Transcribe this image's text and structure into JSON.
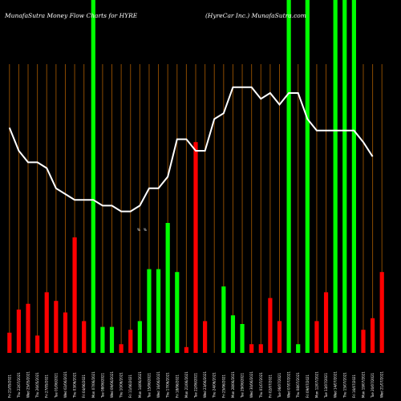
{
  "chart_data": {
    "type": "bar",
    "title_left": "MunafaSutra  Money Flow  Charts for HYRE",
    "title_right": "(HyreCar Inc.) MunafaSutra.com",
    "bar_ylim": [
      0,
      100
    ],
    "line_ylim": [
      0,
      100
    ],
    "colors": {
      "up": "#00ff00",
      "down": "#ff0000",
      "line": "#ffffff",
      "grid": "#8a4a00",
      "background": "#000000"
    },
    "series": [
      {
        "name": "",
        "kind": "bars",
        "values": [
          7,
          15,
          17,
          6,
          21,
          18,
          14,
          40,
          11,
          100,
          9,
          9,
          3,
          8,
          11,
          29,
          29,
          45,
          28,
          2,
          73,
          11,
          0,
          23,
          13,
          10,
          3,
          3,
          19,
          11,
          100,
          3,
          100,
          11,
          21,
          100,
          100,
          100,
          8,
          12,
          28
        ],
        "colors": [
          "down",
          "down",
          "down",
          "down",
          "down",
          "down",
          "down",
          "down",
          "down",
          "up",
          "up",
          "up",
          "down",
          "down",
          "up",
          "up",
          "up",
          "up",
          "up",
          "down",
          "down",
          "down",
          "up",
          "up",
          "up",
          "up",
          "down",
          "down",
          "down",
          "down",
          "up",
          "up",
          "up",
          "down",
          "down",
          "up",
          "up",
          "up",
          "down",
          "down",
          "down"
        ]
      },
      {
        "name": "",
        "kind": "line",
        "values": [
          78,
          70,
          66,
          66,
          64,
          57,
          55,
          53,
          53,
          53,
          51,
          51,
          49,
          49,
          51,
          57,
          57,
          61,
          74,
          74,
          70,
          70,
          81,
          83,
          92,
          92,
          92,
          88,
          90,
          86,
          90,
          90,
          81,
          77,
          77,
          77,
          77,
          77,
          73,
          68
        ]
      }
    ],
    "x_tick_labels": [
      "Fri 21/05/2021",
      "Thu 22/07/2021",
      "Wed 25/05/2021",
      "Thu 26/05/2021",
      "Fri 27/05/2021",
      "Tue 01/06/2021",
      "Wed 02/06/2021",
      "Thu 03/06/2021",
      "Fri 04/06/2021",
      "Mon 07/06/2021",
      "Tue 08/06/2021",
      "Wed 09/06/2021",
      "Thu 10/06/2021",
      "Fri 11/06/2021",
      "Mon 14/06/2021",
      "Tue 15/06/2021",
      "Wed 16/06/2021",
      "Thu 17/06/2021",
      "Fri 18/06/2021",
      "Mon 21/06/2021",
      "Tue 22/06/2021",
      "Wed 23/06/2021",
      "Thu 24/06/2021",
      "Fri 25/06/2021",
      "Mon 28/06/2021",
      "Tue 29/06/2021",
      "Wed 30/06/2021",
      "Thu 01/07/2021",
      "Fri 02/07/2021",
      "Tue 06/07/2021",
      "Wed 07/07/2021",
      "Thu 08/07/2021",
      "Fri 09/07/2021",
      "Mon 12/07/2021",
      "Tue 13/07/2021",
      "Wed 14/07/2021",
      "Thu 15/07/2021",
      "Fri 16/07/2021",
      "Mon 19/07/2021",
      "Tue 20/07/2021",
      "Wed 21/07/2021"
    ],
    "side_marks": [
      "%",
      "%"
    ]
  }
}
